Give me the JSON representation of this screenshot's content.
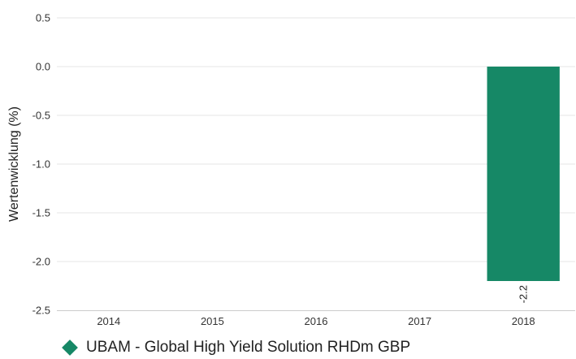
{
  "chart_data": {
    "type": "bar",
    "categories": [
      "2014",
      "2015",
      "2016",
      "2017",
      "2018"
    ],
    "series": [
      {
        "name": "UBAM - Global High Yield Solution RHDm GBP",
        "values": [
          null,
          null,
          null,
          null,
          -2.2
        ],
        "data_labels": [
          "",
          "",
          "",
          "",
          "-2.2"
        ],
        "color": "#168866"
      }
    ],
    "ylabel": "Wertenwicklung (%)",
    "ylim": [
      -2.5,
      0.5
    ],
    "yticks": [
      0.5,
      0.0,
      -0.5,
      -1.0,
      -1.5,
      -2.0,
      -2.5
    ],
    "ytick_labels": [
      "0.5",
      "0.0",
      "-0.5",
      "-1.0",
      "-1.5",
      "-2.0",
      "-2.5"
    ],
    "grid": true,
    "legend_position": "bottom-left"
  }
}
